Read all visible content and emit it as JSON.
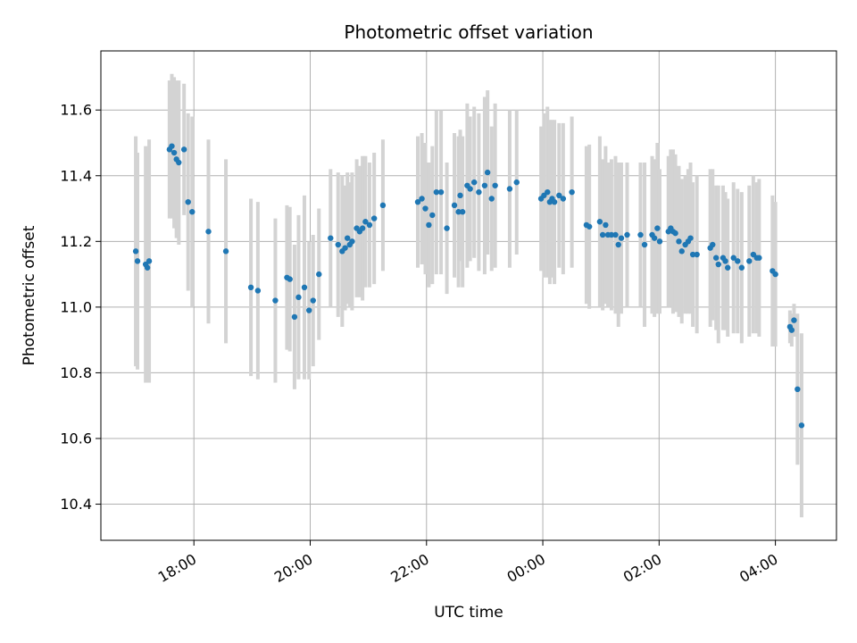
{
  "chart_data": {
    "type": "scatter",
    "title": "Photometric offset variation",
    "xlabel": "UTC time",
    "ylabel": "Photometric offset",
    "x_unit": "hours since 00:00 UTC (negative = previous day)",
    "xlim": [
      -7.6,
      5.05
    ],
    "ylim": [
      10.29,
      11.78
    ],
    "xticks": [
      {
        "value": -6,
        "label": "18:00"
      },
      {
        "value": -4,
        "label": "20:00"
      },
      {
        "value": -2,
        "label": "22:00"
      },
      {
        "value": 0,
        "label": "00:00"
      },
      {
        "value": 2,
        "label": "02:00"
      },
      {
        "value": 4,
        "label": "04:00"
      }
    ],
    "yticks": [
      {
        "value": 10.4,
        "label": "10.4"
      },
      {
        "value": 10.6,
        "label": "10.6"
      },
      {
        "value": 10.8,
        "label": "10.8"
      },
      {
        "value": 11.0,
        "label": "11.0"
      },
      {
        "value": 11.2,
        "label": "11.2"
      },
      {
        "value": 11.4,
        "label": "11.4"
      },
      {
        "value": 11.6,
        "label": "11.6"
      }
    ],
    "grid": true,
    "colors": {
      "point": "#1f77b4",
      "errorbar": "#d3d3d3",
      "grid": "#b0b0b0"
    },
    "series": [
      {
        "x": [
          -7.0,
          -6.97,
          -6.83,
          -6.8,
          -6.77,
          -6.42,
          -6.38,
          -6.34,
          -6.3,
          -6.26,
          -6.17,
          -6.1,
          -6.03,
          -5.75,
          -5.45,
          -5.02,
          -4.9,
          -4.6,
          -4.4,
          -4.35,
          -4.27,
          -4.2,
          -4.1,
          -4.02,
          -3.95,
          -3.85,
          -3.65,
          -3.52,
          -3.45,
          -3.4,
          -3.36,
          -3.32,
          -3.28,
          -3.2,
          -3.15,
          -3.1,
          -3.05,
          -2.98,
          -2.9,
          -2.75,
          -2.15,
          -2.08,
          -2.02,
          -1.96,
          -1.9,
          -1.83,
          -1.75,
          -1.65,
          -1.52,
          -1.45,
          -1.42,
          -1.38,
          -1.3,
          -1.25,
          -1.18,
          -1.1,
          -1.0,
          -0.95,
          -0.88,
          -0.82,
          -0.57,
          -0.45,
          -0.03,
          0.02,
          0.08,
          0.12,
          0.16,
          0.2,
          0.28,
          0.35,
          0.5,
          0.75,
          0.8,
          0.98,
          1.03,
          1.08,
          1.12,
          1.18,
          1.25,
          1.3,
          1.35,
          1.45,
          1.68,
          1.75,
          1.88,
          1.92,
          1.97,
          2.01,
          2.16,
          2.2,
          2.24,
          2.28,
          2.34,
          2.39,
          2.45,
          2.5,
          2.54,
          2.58,
          2.65,
          2.88,
          2.92,
          2.98,
          3.02,
          3.1,
          3.14,
          3.18,
          3.28,
          3.35,
          3.42,
          3.55,
          3.62,
          3.68,
          3.72,
          3.95,
          4.0,
          4.25,
          4.28,
          4.32,
          4.38,
          4.45
        ],
        "y": [
          11.17,
          11.14,
          11.13,
          11.12,
          11.14,
          11.48,
          11.49,
          11.47,
          11.45,
          11.44,
          11.48,
          11.32,
          11.29,
          11.23,
          11.17,
          11.06,
          11.05,
          11.02,
          11.09,
          11.085,
          10.97,
          11.03,
          11.06,
          10.99,
          11.02,
          11.1,
          11.21,
          11.19,
          11.17,
          11.18,
          11.21,
          11.19,
          11.2,
          11.24,
          11.23,
          11.24,
          11.26,
          11.25,
          11.27,
          11.31,
          11.32,
          11.33,
          11.3,
          11.25,
          11.28,
          11.35,
          11.35,
          11.24,
          11.31,
          11.29,
          11.34,
          11.29,
          11.37,
          11.36,
          11.38,
          11.35,
          11.37,
          11.41,
          11.33,
          11.37,
          11.36,
          11.38,
          11.33,
          11.34,
          11.35,
          11.32,
          11.33,
          11.32,
          11.34,
          11.33,
          11.35,
          11.25,
          11.245,
          11.26,
          11.22,
          11.25,
          11.22,
          11.22,
          11.22,
          11.19,
          11.21,
          11.22,
          11.22,
          11.19,
          11.22,
          11.21,
          11.24,
          11.2,
          11.23,
          11.24,
          11.23,
          11.225,
          11.2,
          11.17,
          11.19,
          11.2,
          11.21,
          11.16,
          11.16,
          11.18,
          11.19,
          11.15,
          11.13,
          11.15,
          11.14,
          11.12,
          11.15,
          11.14,
          11.12,
          11.14,
          11.16,
          11.15,
          11.15,
          11.11,
          11.1,
          10.94,
          10.93,
          10.96,
          10.75,
          10.64
        ],
        "err": [
          0.35,
          0.33,
          0.36,
          0.35,
          0.37,
          0.21,
          0.22,
          0.23,
          0.24,
          0.25,
          0.2,
          0.27,
          0.29,
          0.28,
          0.28,
          0.27,
          0.27,
          0.25,
          0.22,
          0.22,
          0.22,
          0.25,
          0.28,
          0.21,
          0.2,
          0.2,
          0.21,
          0.22,
          0.23,
          0.19,
          0.2,
          0.19,
          0.21,
          0.21,
          0.2,
          0.22,
          0.2,
          0.19,
          0.2,
          0.2,
          0.2,
          0.2,
          0.2,
          0.19,
          0.21,
          0.25,
          0.25,
          0.2,
          0.22,
          0.23,
          0.2,
          0.23,
          0.25,
          0.22,
          0.23,
          0.24,
          0.27,
          0.25,
          0.22,
          0.25,
          0.24,
          0.22,
          0.22,
          0.25,
          0.26,
          0.25,
          0.24,
          0.25,
          0.22,
          0.23,
          0.23,
          0.24,
          0.25,
          0.26,
          0.23,
          0.24,
          0.22,
          0.23,
          0.24,
          0.25,
          0.23,
          0.22,
          0.22,
          0.25,
          0.24,
          0.24,
          0.26,
          0.22,
          0.23,
          0.24,
          0.25,
          0.24,
          0.23,
          0.22,
          0.21,
          0.22,
          0.23,
          0.22,
          0.24,
          0.24,
          0.23,
          0.22,
          0.24,
          0.22,
          0.21,
          0.21,
          0.23,
          0.22,
          0.23,
          0.23,
          0.24,
          0.23,
          0.24,
          0.23,
          0.22,
          0.05,
          0.05,
          0.05,
          0.23,
          0.28
        ]
      }
    ]
  }
}
